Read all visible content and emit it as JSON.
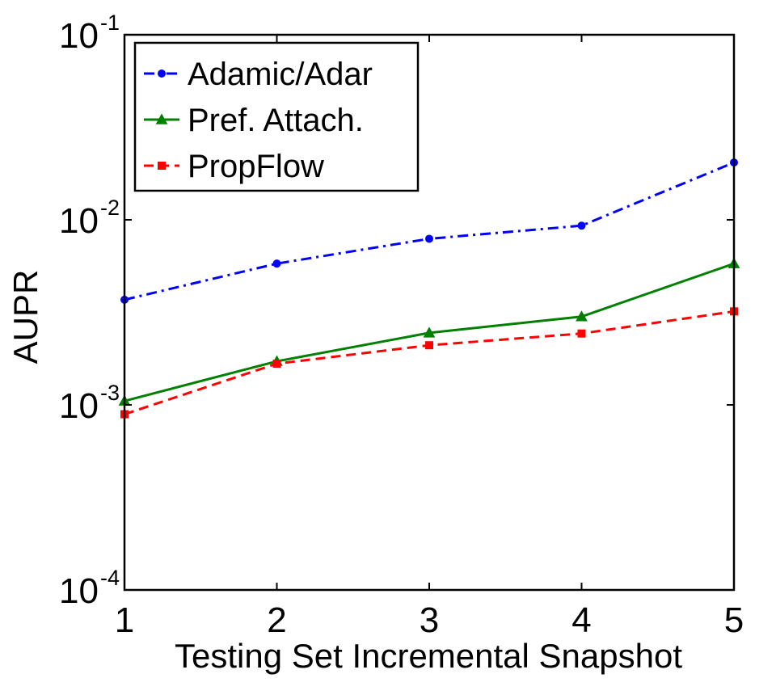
{
  "chart_data": {
    "type": "line",
    "title": "",
    "xlabel": "Testing Set Incremental Snapshot",
    "ylabel": "AUPR",
    "yscale": "log",
    "xlim": [
      1,
      5
    ],
    "ylim": [
      0.0001,
      0.1
    ],
    "x": [
      1,
      2,
      3,
      4,
      5
    ],
    "x_tick_labels": [
      "1",
      "2",
      "3",
      "4",
      "5"
    ],
    "y_ticks": [
      {
        "value": 0.1,
        "base": "10",
        "exponent": "-1"
      },
      {
        "value": 0.01,
        "base": "10",
        "exponent": "-2"
      },
      {
        "value": 0.001,
        "base": "10",
        "exponent": "-3"
      },
      {
        "value": 0.0001,
        "base": "10",
        "exponent": "-4"
      }
    ],
    "legend_position": "top-left",
    "series": [
      {
        "name": "Adamic/Adar",
        "color": "#0000ff",
        "line_style": "dash-dot",
        "marker": "circle",
        "values": [
          0.0037,
          0.0058,
          0.0079,
          0.0093,
          0.0204
        ]
      },
      {
        "name": "Pref. Attach.",
        "color": "#008000",
        "line_style": "solid",
        "marker": "triangle",
        "values": [
          0.00105,
          0.00172,
          0.00245,
          0.003,
          0.0058
        ]
      },
      {
        "name": "PropFlow",
        "color": "#ff0000",
        "line_style": "dashed",
        "marker": "square",
        "values": [
          0.00089,
          0.00167,
          0.0021,
          0.00243,
          0.0032
        ]
      }
    ]
  }
}
